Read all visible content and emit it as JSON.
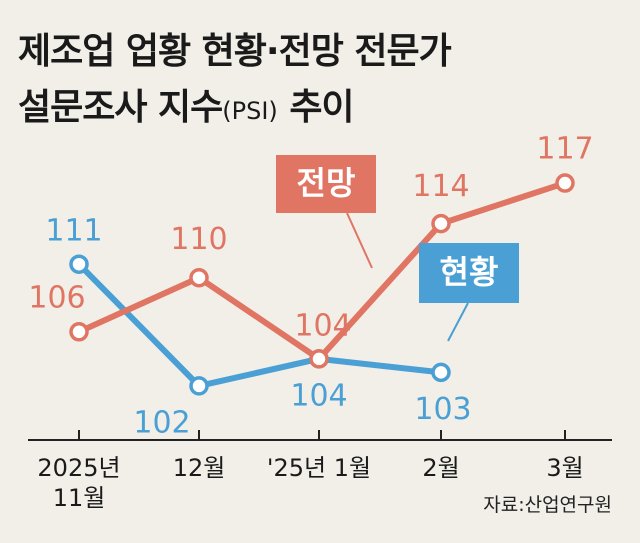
{
  "title": {
    "line1": "제조업 업황 현황·전망 전문가",
    "line2_main": "설문조사 지수",
    "line2_paren": "(PSI)",
    "line2_end": " 추이"
  },
  "source": "자료:산업연구원",
  "colors": {
    "outlook": "#e07563",
    "current": "#4a9fd4",
    "axis": "#222222",
    "background": "#f2efe9"
  },
  "chart_data": {
    "type": "line",
    "categories": [
      "2025년\n11월",
      "12월",
      "'25년 1월",
      "2월",
      "3월"
    ],
    "series": [
      {
        "name": "전망",
        "values": [
          106,
          110,
          104,
          114,
          117
        ]
      },
      {
        "name": "현황",
        "values": [
          111,
          102,
          104,
          103,
          null
        ]
      }
    ],
    "ylim": [
      98,
      119
    ],
    "grid": false,
    "legend": "inline labels"
  }
}
